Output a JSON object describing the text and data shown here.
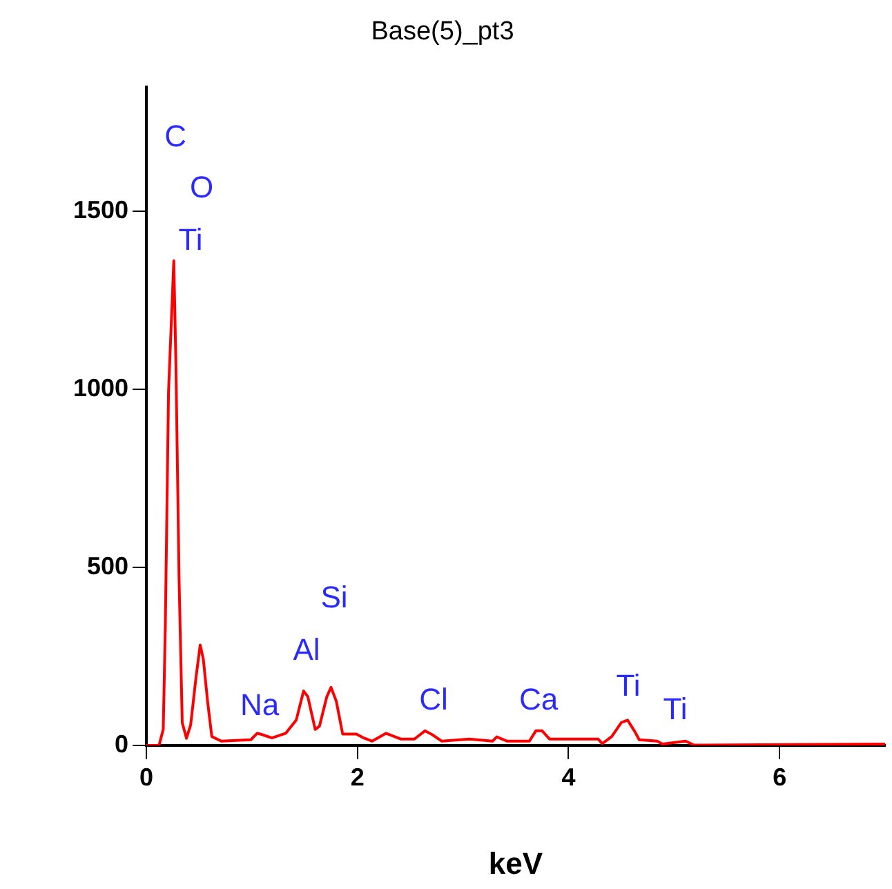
{
  "chart_data": {
    "type": "line",
    "title": "Base(5)_pt3",
    "xlabel": "keV",
    "x": [
      0,
      0.12,
      0.16,
      0.18,
      0.21,
      0.26,
      0.28,
      0.31,
      0.34,
      0.38,
      0.42,
      0.47,
      0.51,
      0.54,
      0.58,
      0.62,
      0.71,
      0.99,
      1.05,
      1.08,
      1.19,
      1.32,
      1.42,
      1.49,
      1.53,
      1.6,
      1.64,
      1.71,
      1.75,
      1.8,
      1.86,
      1.99,
      2.06,
      2.14,
      2.27,
      2.41,
      2.54,
      2.64,
      2.71,
      2.8,
      3.06,
      3.28,
      3.32,
      3.42,
      3.63,
      3.69,
      3.75,
      3.82,
      4.28,
      4.32,
      4.41,
      4.5,
      4.56,
      4.63,
      4.67,
      4.84,
      4.89,
      5.11,
      5.19,
      7
    ],
    "series": [
      {
        "color": "#ff0000",
        "values": [
          0,
          0,
          45,
          341,
          993,
          1361,
          1072,
          466,
          64,
          20,
          58,
          190,
          282,
          242,
          124,
          25,
          12,
          16,
          34,
          32,
          21,
          34,
          71,
          153,
          137,
          45,
          54,
          137,
          163,
          124,
          32,
          32,
          21,
          12,
          34,
          18,
          18,
          41,
          30,
          12,
          18,
          12,
          24,
          12,
          12,
          41,
          41,
          18,
          18,
          5,
          25,
          64,
          71,
          38,
          16,
          12,
          4,
          12,
          1,
          4
        ]
      }
    ],
    "xlim": [
      0,
      7
    ],
    "xticks": [
      0,
      2,
      4,
      6
    ],
    "ylim": [
      0,
      1850
    ],
    "yticks": [
      0,
      500,
      1000,
      1500
    ],
    "grid": false,
    "legend": false,
    "marker": "none",
    "line_style": "solid",
    "annotations": [
      "C",
      "O",
      "Ti",
      "Na",
      "Al",
      "Si",
      "Cl",
      "Ca",
      "Ti",
      "Ti"
    ]
  }
}
